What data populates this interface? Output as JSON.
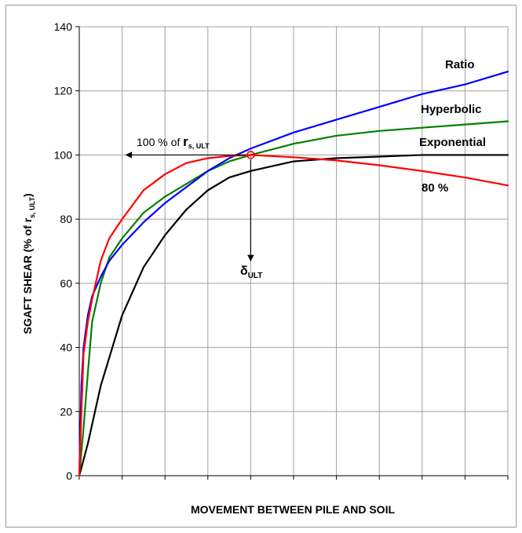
{
  "chart_data": {
    "type": "line",
    "title": "",
    "xlabel": "MOVEMENT BETWEEN PILE AND SOIL",
    "ylabel": {
      "main": "SGAFT SHEAR  (% of r",
      "sub": "s, ULT",
      "tail": ")"
    },
    "xlim": [
      0,
      10
    ],
    "ylim": [
      0,
      140
    ],
    "y_ticks": [
      "0",
      "20",
      "40",
      "60",
      "80",
      "100",
      "120",
      "140"
    ],
    "x_gridlines": 10,
    "grid": true,
    "series": [
      {
        "name": "Ratio",
        "color": "#0000ff",
        "x": [
          0,
          0.05,
          0.1,
          0.2,
          0.3,
          0.5,
          0.7,
          1.0,
          1.5,
          2.0,
          2.5,
          3.0,
          3.5,
          4.0,
          5.0,
          6.0,
          7.0,
          8.0,
          9.0,
          10.0
        ],
        "y": [
          0,
          28,
          40,
          50,
          56,
          62,
          67,
          72,
          79,
          85,
          90,
          95,
          99,
          102,
          107,
          111,
          115,
          119,
          122,
          126
        ]
      },
      {
        "name": "Hyperbolic",
        "color": "#008000",
        "x": [
          0,
          0.1,
          0.2,
          0.3,
          0.5,
          0.7,
          1.0,
          1.5,
          2.0,
          2.5,
          3.0,
          3.5,
          4.0,
          5.0,
          6.0,
          7.0,
          8.0,
          9.0,
          10.0
        ],
        "y": [
          0,
          15,
          32,
          48,
          60,
          68,
          74,
          82,
          87,
          91,
          95,
          98,
          100,
          103.5,
          106,
          107.5,
          108.5,
          109.5,
          110.5
        ]
      },
      {
        "name": "Exponential",
        "color": "#000000",
        "x": [
          0,
          0.2,
          0.5,
          1.0,
          1.5,
          2.0,
          2.5,
          3.0,
          3.5,
          4.0,
          5.0,
          6.0,
          7.0,
          8.0,
          9.0,
          10.0
        ],
        "y": [
          0,
          10,
          28,
          50,
          65,
          75,
          83,
          89,
          93,
          95,
          98,
          99,
          99.5,
          100,
          100,
          100
        ]
      },
      {
        "name": "80 %",
        "color": "#ff0000",
        "x": [
          0,
          0.05,
          0.1,
          0.2,
          0.3,
          0.5,
          0.7,
          1.0,
          1.5,
          2.0,
          2.5,
          3.0,
          3.5,
          4.0,
          5.0,
          6.0,
          7.0,
          8.0,
          9.0,
          10.0
        ],
        "y": [
          0,
          20,
          38,
          48,
          55,
          67,
          74,
          80,
          89,
          94,
          97.5,
          99,
          99.7,
          100,
          99.3,
          98.3,
          96.8,
          95,
          93,
          90.5
        ]
      }
    ],
    "annotations": {
      "ultimate_point": {
        "x": 4,
        "y": 100,
        "color": "#ff0000"
      },
      "horizontal_arrow": {
        "text": "100 % of ",
        "r": "r",
        "r_sub": "s, ULT",
        "from_x": 4,
        "to_x": 1.2,
        "y": 100
      },
      "vertical_arrow": {
        "text": "δ",
        "sub": "ULT",
        "x": 4,
        "from_y": 100,
        "to_y": 67
      }
    }
  }
}
